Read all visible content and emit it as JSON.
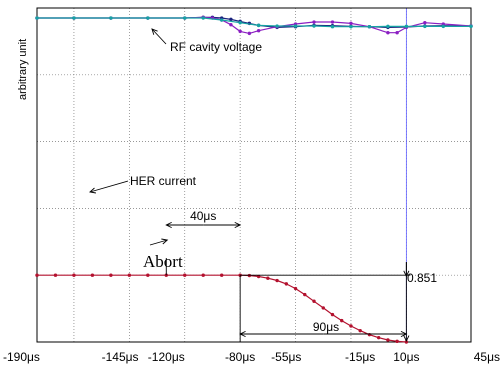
{
  "chart_data": {
    "type": "line",
    "ylabel": "arbitrary unit",
    "xlim": [
      -190,
      45
    ],
    "x_ticks": [
      {
        "x": -190,
        "label": "-190μs"
      },
      {
        "x": -145,
        "label": "-145μs"
      },
      {
        "x": -120,
        "label": "-120μs"
      },
      {
        "x": -80,
        "label": "-80μs"
      },
      {
        "x": -55,
        "label": "-55μs"
      },
      {
        "x": -15,
        "label": "-15μs"
      },
      {
        "x": 10,
        "label": "10μs"
      },
      {
        "x": 45,
        "label": "45μs"
      }
    ],
    "grid": true,
    "series": [
      {
        "name": "HER current",
        "color": "#b3112e",
        "x": [
          -190,
          -180,
          -170,
          -160,
          -150,
          -140,
          -130,
          -120,
          -110,
          -100,
          -90,
          -80,
          -75,
          -70,
          -65,
          -60,
          -55,
          -50,
          -45,
          -40,
          -35,
          -30,
          -25,
          -20,
          -15,
          -10,
          -5,
          0,
          5,
          10
        ],
        "y": [
          1,
          1,
          1,
          1,
          1,
          1,
          1,
          1,
          1,
          1,
          1,
          1,
          0.995,
          0.98,
          0.955,
          0.92,
          0.87,
          0.8,
          0.71,
          0.61,
          0.51,
          0.41,
          0.32,
          0.24,
          0.17,
          0.11,
          0.065,
          0.03,
          0.01,
          0
        ]
      },
      {
        "name": "RF cavity voltage",
        "color": "#1a237e",
        "x": [
          -190,
          -170,
          -150,
          -130,
          -110,
          -100,
          -95,
          -90,
          -85,
          -80,
          -75,
          -70,
          -60,
          -50,
          -40,
          -30,
          -20,
          -10,
          0,
          10,
          20,
          30,
          45
        ],
        "y": [
          4.85,
          4.85,
          4.85,
          4.85,
          4.85,
          4.86,
          4.86,
          4.85,
          4.83,
          4.8,
          4.77,
          4.74,
          4.71,
          4.72,
          4.74,
          4.735,
          4.725,
          4.72,
          4.71,
          4.715,
          4.73,
          4.735,
          4.73
        ]
      },
      {
        "name": "RF cavity voltage (2)",
        "color": "#8b1fc2",
        "x": [
          -190,
          -170,
          -150,
          -130,
          -110,
          -100,
          -95,
          -90,
          -85,
          -80,
          -75,
          -70,
          -60,
          -50,
          -40,
          -30,
          -20,
          -10,
          0,
          5,
          10,
          20,
          30,
          45
        ],
        "y": [
          4.85,
          4.85,
          4.85,
          4.85,
          4.85,
          4.86,
          4.85,
          4.82,
          4.75,
          4.65,
          4.62,
          4.66,
          4.72,
          4.76,
          4.79,
          4.79,
          4.77,
          4.72,
          4.63,
          4.63,
          4.71,
          4.78,
          4.76,
          4.73
        ]
      },
      {
        "name": "RF cavity voltage (3)",
        "color": "#16a3a3",
        "x": [
          -190,
          -170,
          -150,
          -130,
          -110,
          -100,
          -90,
          -80,
          -70,
          -60,
          -50,
          -40,
          -30,
          -20,
          -10,
          0,
          10,
          20,
          30,
          45
        ],
        "y": [
          4.85,
          4.85,
          4.85,
          4.85,
          4.85,
          4.85,
          4.82,
          4.78,
          4.74,
          4.73,
          4.73,
          4.73,
          4.72,
          4.72,
          4.72,
          4.725,
          4.725,
          4.725,
          4.725,
          4.725
        ]
      }
    ],
    "annotations": [
      {
        "text": "RF cavity voltage",
        "kind": "arrow-label"
      },
      {
        "text": "HER current",
        "kind": "arrow-label"
      },
      {
        "text": "40μs",
        "kind": "span",
        "from": -120,
        "to": -80
      },
      {
        "text": "Abort",
        "kind": "label"
      },
      {
        "text": "0.851",
        "kind": "vertical-span"
      },
      {
        "text": "90μs",
        "kind": "span",
        "from": -80,
        "to": 10
      }
    ]
  }
}
